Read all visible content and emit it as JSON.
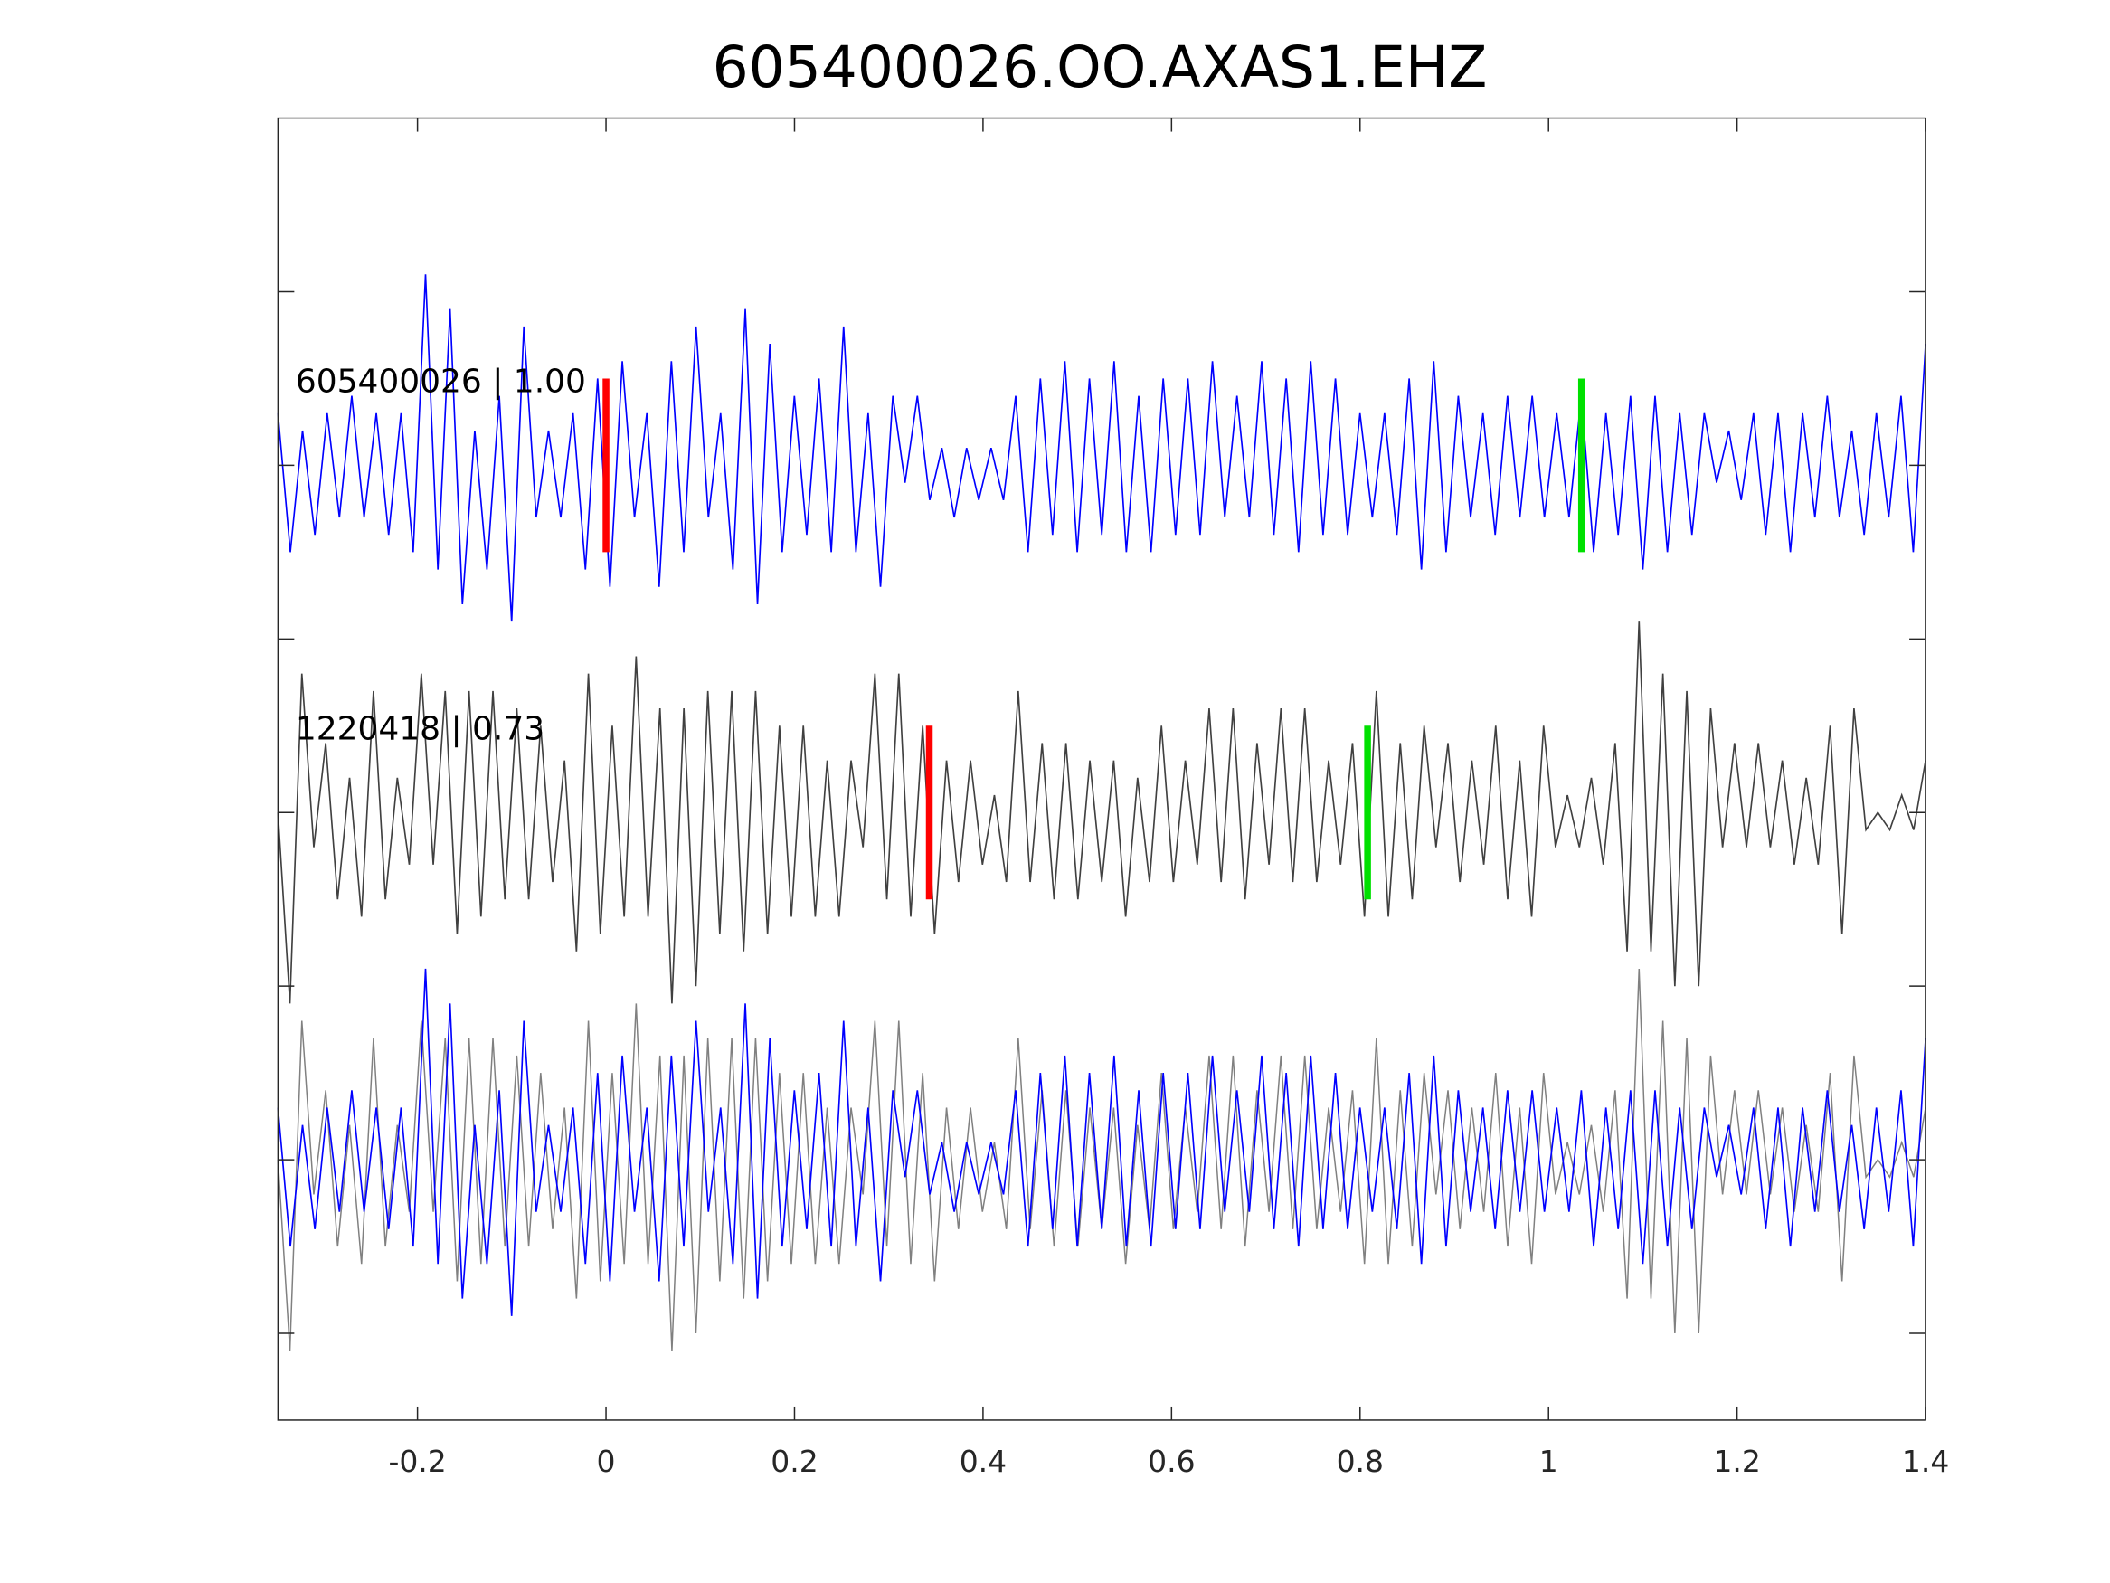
{
  "chart_data": {
    "type": "line",
    "title": "605400026.OO.AXAS1.EHZ",
    "xlabel": "",
    "ylabel": "",
    "xlim": [
      -0.348,
      1.4
    ],
    "xticks": [
      -0.2,
      0,
      0.2,
      0.4,
      0.6,
      0.8,
      1,
      1.2,
      1.4
    ],
    "xtick_labels": [
      "-0.2",
      "0",
      "0.2",
      "0.4",
      "0.6",
      "0.8",
      "1",
      "1.2",
      "1.4"
    ],
    "trace_offsets": [
      2,
      0,
      -2
    ],
    "ylim": [
      -3.5,
      4.0
    ],
    "grid": false,
    "colors": {
      "trace1": "#0000ff",
      "trace2": "#404040",
      "trace2_overlay": "#808080",
      "pick_p": "#ff0000",
      "pick_s": "#00e000"
    },
    "series": [
      {
        "name": "605400026",
        "label": "605400026 | 1.00",
        "correlation": 1.0,
        "p_pick": 0.0,
        "s_pick": 1.035,
        "values": [
          0.3,
          -0.5,
          0.2,
          -0.4,
          0.3,
          -0.3,
          0.4,
          -0.3,
          0.3,
          -0.4,
          0.3,
          -0.5,
          1.1,
          -0.6,
          0.9,
          -0.8,
          0.2,
          -0.6,
          0.4,
          -0.9,
          0.8,
          -0.3,
          0.2,
          -0.3,
          0.3,
          -0.6,
          0.5,
          -0.7,
          0.6,
          -0.3,
          0.3,
          -0.7,
          0.6,
          -0.5,
          0.8,
          -0.3,
          0.3,
          -0.6,
          0.9,
          -0.8,
          0.7,
          -0.5,
          0.4,
          -0.4,
          0.5,
          -0.5,
          0.8,
          -0.5,
          0.3,
          -0.7,
          0.4,
          -0.1,
          0.4,
          -0.2,
          0.1,
          -0.3,
          0.1,
          -0.2,
          0.1,
          -0.2,
          0.4,
          -0.5,
          0.5,
          -0.4,
          0.6,
          -0.5,
          0.5,
          -0.4,
          0.6,
          -0.5,
          0.4,
          -0.5,
          0.5,
          -0.4,
          0.5,
          -0.4,
          0.6,
          -0.3,
          0.4,
          -0.3,
          0.6,
          -0.4,
          0.5,
          -0.5,
          0.6,
          -0.4,
          0.5,
          -0.4,
          0.3,
          -0.3,
          0.3,
          -0.4,
          0.5,
          -0.6,
          0.6,
          -0.5,
          0.4,
          -0.3,
          0.3,
          -0.4,
          0.4,
          -0.3,
          0.4,
          -0.3,
          0.3,
          -0.3,
          0.4,
          -0.5,
          0.3,
          -0.4,
          0.4,
          -0.6,
          0.4,
          -0.5,
          0.3,
          -0.4,
          0.3,
          -0.1,
          0.2,
          -0.2,
          0.3,
          -0.4,
          0.3,
          -0.5,
          0.3,
          -0.3,
          0.4,
          -0.3,
          0.2,
          -0.4,
          0.3,
          -0.3,
          0.4,
          -0.5,
          0.7
        ]
      },
      {
        "name": "1220418",
        "label": "1220418 | 0.73",
        "correlation": 0.73,
        "p_pick": 0.343,
        "s_pick": 0.808,
        "values": [
          0.0,
          -1.1,
          0.8,
          -0.2,
          0.4,
          -0.5,
          0.2,
          -0.6,
          0.7,
          -0.5,
          0.2,
          -0.3,
          0.8,
          -0.3,
          0.7,
          -0.7,
          0.7,
          -0.6,
          0.7,
          -0.5,
          0.6,
          -0.5,
          0.5,
          -0.4,
          0.3,
          -0.8,
          0.8,
          -0.7,
          0.5,
          -0.6,
          0.9,
          -0.6,
          0.6,
          -1.1,
          0.6,
          -1.0,
          0.7,
          -0.7,
          0.7,
          -0.8,
          0.7,
          -0.7,
          0.5,
          -0.6,
          0.5,
          -0.6,
          0.3,
          -0.6,
          0.3,
          -0.2,
          0.8,
          -0.5,
          0.8,
          -0.6,
          0.5,
          -0.7,
          0.3,
          -0.4,
          0.3,
          -0.3,
          0.1,
          -0.4,
          0.7,
          -0.4,
          0.4,
          -0.5,
          0.4,
          -0.5,
          0.3,
          -0.4,
          0.3,
          -0.6,
          0.2,
          -0.4,
          0.5,
          -0.4,
          0.3,
          -0.3,
          0.6,
          -0.4,
          0.6,
          -0.5,
          0.4,
          -0.3,
          0.6,
          -0.4,
          0.6,
          -0.4,
          0.3,
          -0.3,
          0.4,
          -0.6,
          0.7,
          -0.6,
          0.4,
          -0.5,
          0.5,
          -0.2,
          0.4,
          -0.4,
          0.3,
          -0.3,
          0.5,
          -0.5,
          0.3,
          -0.6,
          0.5,
          -0.2,
          0.1,
          -0.2,
          0.2,
          -0.3,
          0.4,
          -0.8,
          1.1,
          -0.8,
          0.8,
          -1.0,
          0.7,
          -1.0,
          0.6,
          -0.2,
          0.4,
          -0.2,
          0.4,
          -0.2,
          0.3,
          -0.3,
          0.2,
          -0.3,
          0.5,
          -0.7,
          0.6,
          -0.1,
          0.0,
          -0.1,
          0.1,
          -0.1,
          0.3
        ]
      }
    ],
    "annotations": [
      "605400026 | 1.00",
      "1220418 | 0.73"
    ]
  }
}
